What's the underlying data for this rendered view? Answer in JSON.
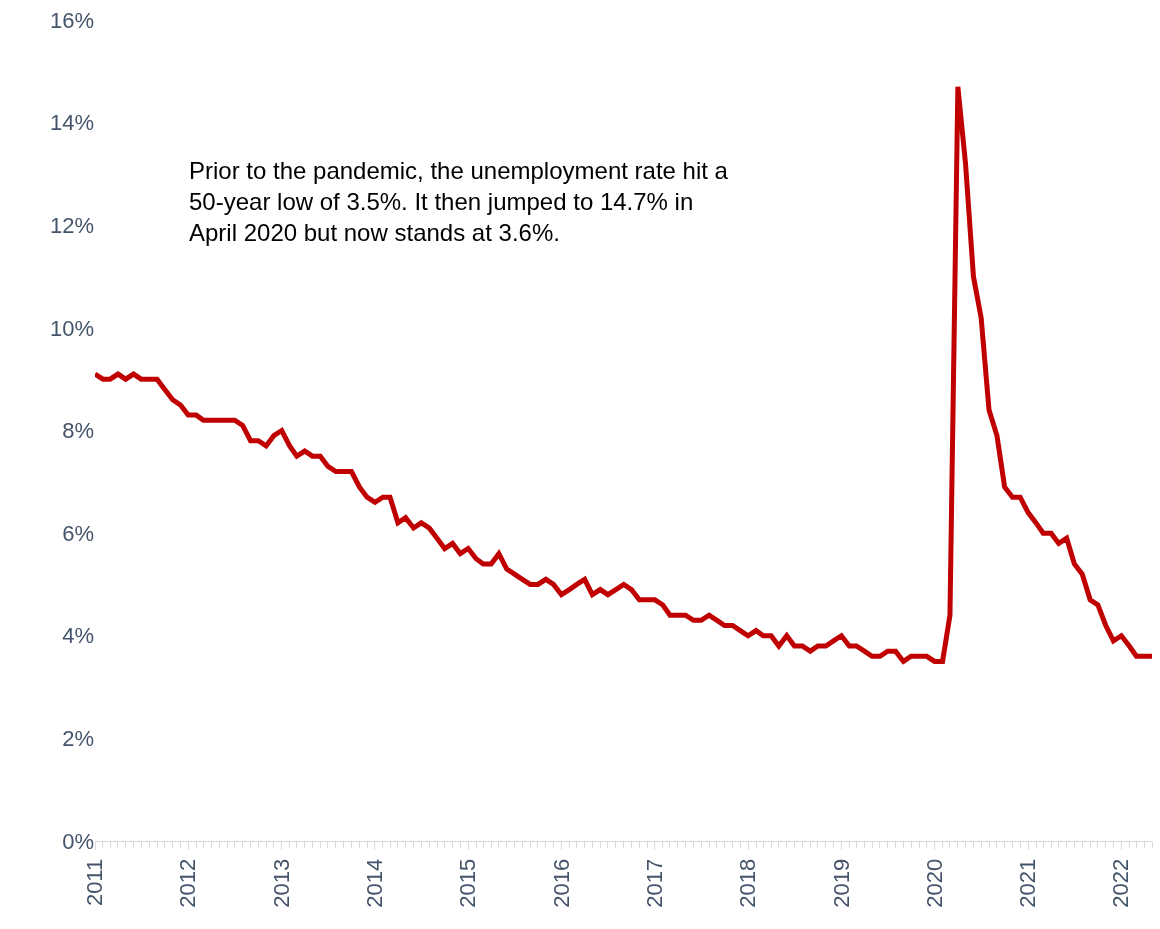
{
  "chart_data": {
    "type": "line",
    "annotations": [
      "Prior to the pandemic, the unemployment rate hit a 50-year low of 3.5%. It then jumped to 14.7% in April 2020 but now stands at 3.6%."
    ],
    "x": [
      "2011-01",
      "2011-02",
      "2011-03",
      "2011-04",
      "2011-05",
      "2011-06",
      "2011-07",
      "2011-08",
      "2011-09",
      "2011-10",
      "2011-11",
      "2011-12",
      "2012-01",
      "2012-02",
      "2012-03",
      "2012-04",
      "2012-05",
      "2012-06",
      "2012-07",
      "2012-08",
      "2012-09",
      "2012-10",
      "2012-11",
      "2012-12",
      "2013-01",
      "2013-02",
      "2013-03",
      "2013-04",
      "2013-05",
      "2013-06",
      "2013-07",
      "2013-08",
      "2013-09",
      "2013-10",
      "2013-11",
      "2013-12",
      "2014-01",
      "2014-02",
      "2014-03",
      "2014-04",
      "2014-05",
      "2014-06",
      "2014-07",
      "2014-08",
      "2014-09",
      "2014-10",
      "2014-11",
      "2014-12",
      "2015-01",
      "2015-02",
      "2015-03",
      "2015-04",
      "2015-05",
      "2015-06",
      "2015-07",
      "2015-08",
      "2015-09",
      "2015-10",
      "2015-11",
      "2015-12",
      "2016-01",
      "2016-02",
      "2016-03",
      "2016-04",
      "2016-05",
      "2016-06",
      "2016-07",
      "2016-08",
      "2016-09",
      "2016-10",
      "2016-11",
      "2016-12",
      "2017-01",
      "2017-02",
      "2017-03",
      "2017-04",
      "2017-05",
      "2017-06",
      "2017-07",
      "2017-08",
      "2017-09",
      "2017-10",
      "2017-11",
      "2017-12",
      "2018-01",
      "2018-02",
      "2018-03",
      "2018-04",
      "2018-05",
      "2018-06",
      "2018-07",
      "2018-08",
      "2018-09",
      "2018-10",
      "2018-11",
      "2018-12",
      "2019-01",
      "2019-02",
      "2019-03",
      "2019-04",
      "2019-05",
      "2019-06",
      "2019-07",
      "2019-08",
      "2019-09",
      "2019-10",
      "2019-11",
      "2019-12",
      "2020-01",
      "2020-02",
      "2020-03",
      "2020-04",
      "2020-05",
      "2020-06",
      "2020-07",
      "2020-08",
      "2020-09",
      "2020-10",
      "2020-11",
      "2020-12",
      "2021-01",
      "2021-02",
      "2021-03",
      "2021-04",
      "2021-05",
      "2021-06",
      "2021-07",
      "2021-08",
      "2021-09",
      "2021-10",
      "2021-11",
      "2021-12",
      "2022-01",
      "2022-02",
      "2022-03",
      "2022-04",
      "2022-05"
    ],
    "series": [
      {
        "color": "#c00000",
        "values": [
          9.1,
          9.0,
          9.0,
          9.1,
          9.0,
          9.1,
          9.0,
          9.0,
          9.0,
          8.8,
          8.6,
          8.5,
          8.3,
          8.3,
          8.2,
          8.2,
          8.2,
          8.2,
          8.2,
          8.1,
          7.8,
          7.8,
          7.7,
          7.9,
          8.0,
          7.7,
          7.5,
          7.6,
          7.5,
          7.5,
          7.3,
          7.2,
          7.2,
          7.2,
          6.9,
          6.7,
          6.6,
          6.7,
          6.7,
          6.2,
          6.3,
          6.1,
          6.2,
          6.1,
          5.9,
          5.7,
          5.8,
          5.6,
          5.7,
          5.5,
          5.4,
          5.4,
          5.6,
          5.3,
          5.2,
          5.1,
          5.0,
          5.0,
          5.1,
          5.0,
          4.8,
          4.9,
          5.0,
          5.1,
          4.8,
          4.9,
          4.8,
          4.9,
          5.0,
          4.9,
          4.7,
          4.7,
          4.7,
          4.6,
          4.4,
          4.4,
          4.4,
          4.3,
          4.3,
          4.4,
          4.3,
          4.2,
          4.2,
          4.1,
          4.0,
          4.1,
          4.0,
          4.0,
          3.8,
          4.0,
          3.8,
          3.8,
          3.7,
          3.8,
          3.8,
          3.9,
          4.0,
          3.8,
          3.8,
          3.7,
          3.6,
          3.6,
          3.7,
          3.7,
          3.5,
          3.6,
          3.6,
          3.6,
          3.5,
          3.5,
          4.4,
          14.7,
          13.2,
          11.0,
          10.2,
          8.4,
          7.9,
          6.9,
          6.7,
          6.7,
          6.4,
          6.2,
          6.0,
          6.0,
          5.8,
          5.9,
          5.4,
          5.2,
          4.7,
          4.6,
          4.2,
          3.9,
          4.0,
          3.8,
          3.6,
          3.6,
          3.6
        ]
      }
    ],
    "xlim": [
      "2011-01",
      "2022-05"
    ],
    "xticks": [
      "2011",
      "2012",
      "2013",
      "2014",
      "2015",
      "2016",
      "2017",
      "2018",
      "2019",
      "2020",
      "2021",
      "2022"
    ],
    "ylim": [
      0,
      16
    ],
    "yticks": [
      {
        "value": 0,
        "label": "0%"
      },
      {
        "value": 2,
        "label": "2%"
      },
      {
        "value": 4,
        "label": "4%"
      },
      {
        "value": 6,
        "label": "6%"
      },
      {
        "value": 8,
        "label": "8%"
      },
      {
        "value": 10,
        "label": "10%"
      },
      {
        "value": 12,
        "label": "12%"
      },
      {
        "value": 14,
        "label": "14%"
      },
      {
        "value": 16,
        "label": "16%"
      }
    ],
    "grid": false,
    "marker": "none",
    "line_style": "solid"
  }
}
